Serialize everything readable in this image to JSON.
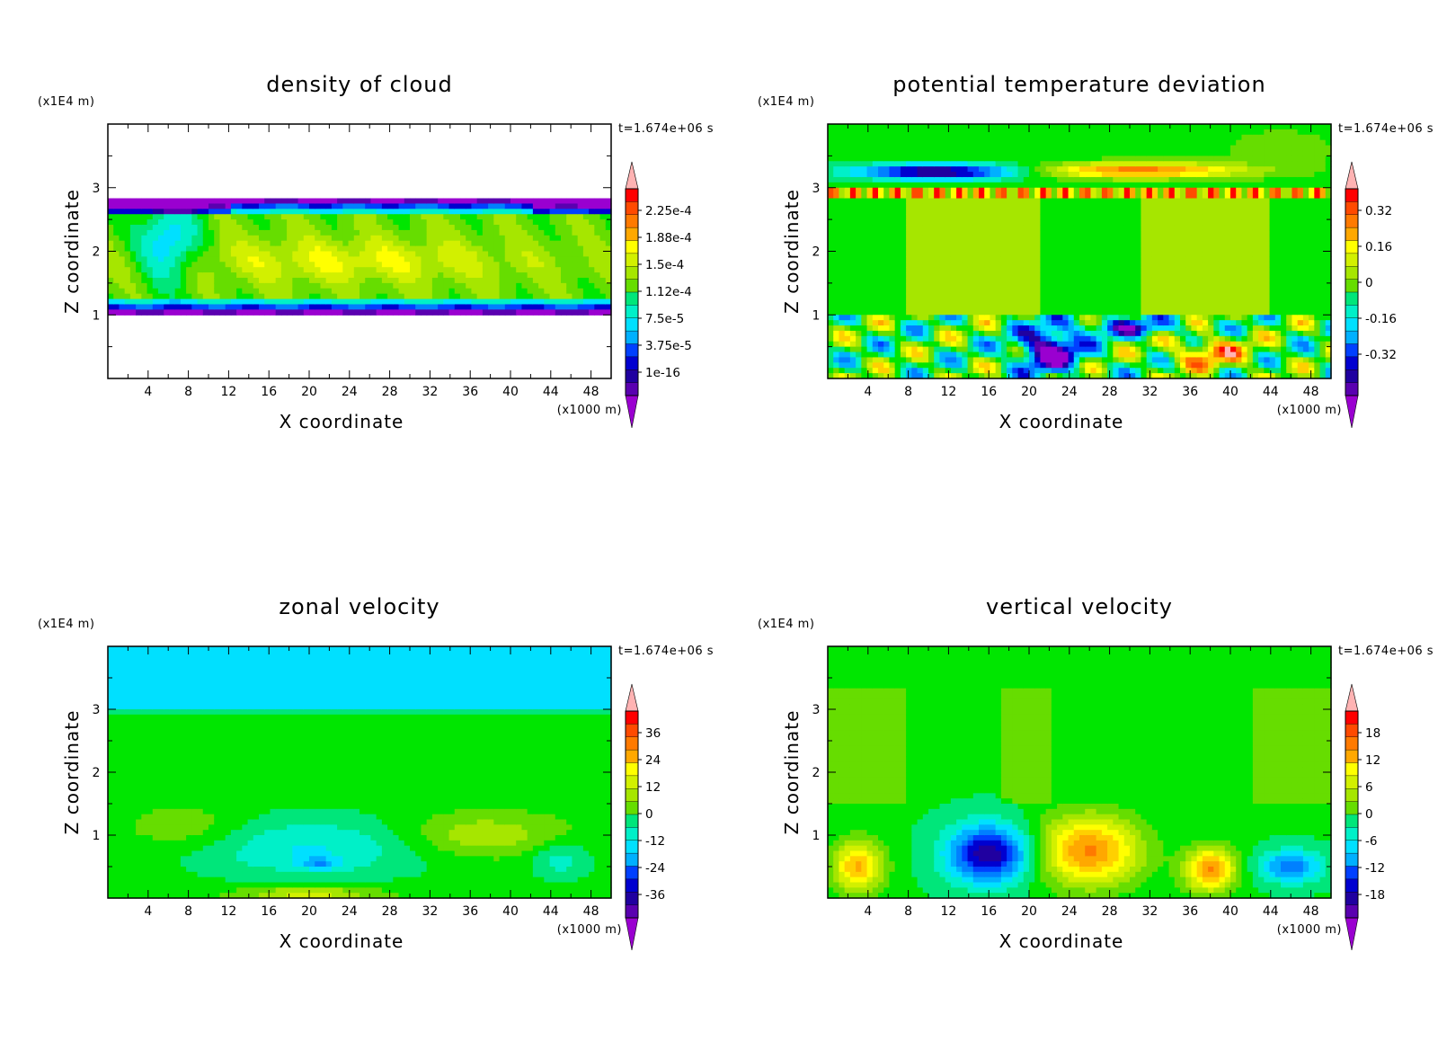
{
  "chart_data": [
    {
      "type": "heatmap",
      "title": "density of cloud",
      "xlabel": "X coordinate",
      "ylabel": "Z coordinate",
      "x_unit": "(x1000 m)",
      "z_unit": "(x1E4 m)",
      "time": "t=1.674e+06 s",
      "xlim": [
        0,
        50
      ],
      "ylim": [
        0,
        4
      ],
      "x_ticks": [
        "4",
        "8",
        "12",
        "16",
        "20",
        "24",
        "28",
        "32",
        "36",
        "40",
        "44",
        "48"
      ],
      "z_ticks": [
        "1",
        "2",
        "3"
      ],
      "colorbar_labels": [
        "2.25e-4",
        "1.88e-4",
        "1.5e-4",
        "1.12e-4",
        "7.5e-5",
        "3.75e-5",
        "1e-16"
      ],
      "colorbar_levels": [
        1e-16,
        3.75e-05,
        7.5e-05,
        0.000112,
        0.00015,
        0.000188,
        0.000225
      ],
      "cloud_layer_z": [
        1.0,
        2.85
      ]
    },
    {
      "type": "heatmap",
      "title": "potential temperature deviation",
      "xlabel": "X coordinate",
      "ylabel": "Z coordinate",
      "x_unit": "(x1000 m)",
      "z_unit": "(x1E4 m)",
      "time": "t=1.674e+06 s",
      "xlim": [
        0,
        50
      ],
      "ylim": [
        0,
        4
      ],
      "x_ticks": [
        "4",
        "8",
        "12",
        "16",
        "20",
        "24",
        "28",
        "32",
        "36",
        "40",
        "44",
        "48"
      ],
      "z_ticks": [
        "1",
        "2",
        "3"
      ],
      "colorbar_labels": [
        "0.32",
        "0.16",
        "0",
        "-0.16",
        "-0.32"
      ],
      "colorbar_levels": [
        -0.32,
        -0.16,
        0,
        0.16,
        0.32
      ]
    },
    {
      "type": "heatmap",
      "title": "zonal velocity",
      "xlabel": "X coordinate",
      "ylabel": "Z coordinate",
      "x_unit": "(x1000 m)",
      "z_unit": "(x1E4 m)",
      "time": "t=1.674e+06 s",
      "xlim": [
        0,
        50
      ],
      "ylim": [
        0,
        4
      ],
      "x_ticks": [
        "4",
        "8",
        "12",
        "16",
        "20",
        "24",
        "28",
        "32",
        "36",
        "40",
        "44",
        "48"
      ],
      "z_ticks": [
        "1",
        "2",
        "3"
      ],
      "colorbar_labels": [
        "36",
        "24",
        "12",
        "0",
        "-12",
        "-24",
        "-36"
      ],
      "colorbar_levels": [
        -36,
        -24,
        -12,
        0,
        12,
        24,
        36
      ]
    },
    {
      "type": "heatmap",
      "title": "vertical velocity",
      "xlabel": "X coordinate",
      "ylabel": "Z coordinate",
      "x_unit": "(x1000 m)",
      "z_unit": "(x1E4 m)",
      "time": "t=1.674e+06 s",
      "xlim": [
        0,
        50
      ],
      "ylim": [
        0,
        4
      ],
      "x_ticks": [
        "4",
        "8",
        "12",
        "16",
        "20",
        "24",
        "28",
        "32",
        "36",
        "40",
        "44",
        "48"
      ],
      "z_ticks": [
        "1",
        "2",
        "3"
      ],
      "colorbar_labels": [
        "18",
        "12",
        "6",
        "0",
        "-6",
        "-12",
        "-18"
      ],
      "colorbar_levels": [
        -18,
        -12,
        -6,
        0,
        6,
        12,
        18
      ]
    }
  ],
  "colors": {
    "colormap": [
      "#ffb3b3",
      "#ff0000",
      "#ff4a00",
      "#ff7a00",
      "#ffa800",
      "#ffd000",
      "#ffff00",
      "#d2f000",
      "#a6e600",
      "#66dd00",
      "#00e600",
      "#00e67a",
      "#00f0c8",
      "#00e0ff",
      "#00b0ff",
      "#0080ff",
      "#0040ff",
      "#0000d0",
      "#2000a0",
      "#5a00b0",
      "#9a00d0"
    ],
    "frame": "#000000",
    "background": "#ffffff"
  }
}
